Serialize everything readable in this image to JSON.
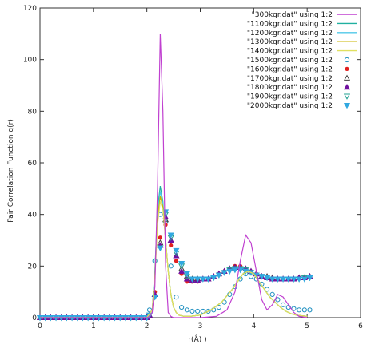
{
  "chart_data": {
    "type": "line",
    "xlabel": "r(Å) )",
    "ylabel": "Pair Correlation Function g(r)",
    "xlim": [
      0,
      6
    ],
    "ylim": [
      0,
      120
    ],
    "xticks": [
      0,
      1,
      2,
      3,
      4,
      5,
      6
    ],
    "yticks": [
      0,
      20,
      40,
      60,
      80,
      100,
      120
    ],
    "grid": false,
    "legend_position": "top-right",
    "series": [
      {
        "name": "\"300kgr.dat\" using 1:2",
        "style": "line",
        "color": "#c040d0",
        "x": [
          0,
          2.0,
          2.05,
          2.1,
          2.15,
          2.2,
          2.25,
          2.3,
          2.35,
          2.4,
          2.45,
          2.5,
          2.7,
          3.0,
          3.3,
          3.5,
          3.65,
          3.75,
          3.85,
          3.95,
          4.05,
          4.15,
          4.25,
          4.35,
          4.45,
          4.55,
          4.65,
          4.75,
          4.85,
          5.0
        ],
        "y": [
          0,
          0,
          0.5,
          2,
          12,
          50,
          110,
          80,
          20,
          2,
          0.5,
          0,
          0,
          0,
          0.5,
          3,
          10,
          22,
          32,
          29,
          18,
          7,
          3,
          5,
          9,
          8,
          5,
          2,
          0.5,
          0
        ]
      },
      {
        "name": "\"1100kgr.dat\" using 1:2",
        "style": "line",
        "color": "#20b0a0",
        "x": [
          0,
          2.0,
          2.1,
          2.15,
          2.2,
          2.25,
          2.3,
          2.35,
          2.4,
          2.45,
          2.5,
          2.55,
          2.6,
          2.7,
          2.8,
          3.0,
          3.2,
          3.4,
          3.6,
          3.8,
          3.9,
          4.0,
          4.1,
          4.2,
          4.3,
          4.4,
          4.5,
          4.6,
          4.7,
          4.8,
          5.0
        ],
        "y": [
          0,
          0,
          3,
          18,
          42,
          51,
          45,
          30,
          18,
          9,
          4,
          2,
          1,
          0.5,
          0.5,
          1,
          3,
          6,
          11,
          17,
          18,
          17,
          14,
          11,
          8,
          6,
          4,
          2.5,
          1.5,
          1,
          0.5
        ]
      },
      {
        "name": "\"1200kgr.dat\" using 1:2",
        "style": "line",
        "color": "#50c8e8",
        "x": [
          0,
          2.0,
          2.1,
          2.15,
          2.2,
          2.25,
          2.3,
          2.35,
          2.4,
          2.45,
          2.5,
          2.55,
          2.6,
          2.7,
          2.8,
          3.0,
          3.2,
          3.4,
          3.6,
          3.8,
          3.9,
          4.0,
          4.1,
          4.2,
          4.3,
          4.4,
          4.5,
          4.6,
          4.7,
          4.8,
          5.0
        ],
        "y": [
          0,
          0,
          3,
          17,
          40,
          49,
          44,
          30,
          18,
          9,
          4,
          2,
          1,
          0.5,
          0.5,
          1,
          3,
          6,
          11,
          17,
          18,
          17,
          14,
          11,
          8,
          6,
          4,
          2.5,
          1.5,
          1,
          0.5
        ]
      },
      {
        "name": "\"1300kgr.dat\" using 1:2",
        "style": "line",
        "color": "#c8b400",
        "x": [
          0,
          2.0,
          2.1,
          2.15,
          2.2,
          2.25,
          2.3,
          2.35,
          2.4,
          2.45,
          2.5,
          2.55,
          2.6,
          2.7,
          2.8,
          3.0,
          3.2,
          3.4,
          3.6,
          3.8,
          3.9,
          4.0,
          4.1,
          4.2,
          4.3,
          4.4,
          4.5,
          4.6,
          4.7,
          4.8,
          5.0
        ],
        "y": [
          0,
          0,
          3,
          16,
          38,
          47,
          43,
          30,
          18,
          9,
          4,
          2,
          1,
          0.5,
          0.5,
          1,
          3,
          6,
          11,
          17,
          18,
          17,
          14,
          11,
          8,
          6,
          4,
          2.5,
          1.5,
          1,
          0.5
        ]
      },
      {
        "name": "\"1400kgr.dat\" using 1:2",
        "style": "line",
        "color": "#e0e060",
        "x": [
          0,
          2.0,
          2.1,
          2.15,
          2.2,
          2.25,
          2.3,
          2.35,
          2.4,
          2.45,
          2.5,
          2.55,
          2.6,
          2.7,
          2.8,
          3.0,
          3.2,
          3.4,
          3.6,
          3.8,
          3.9,
          4.0,
          4.1,
          4.2,
          4.3,
          4.4,
          4.5,
          4.6,
          4.7,
          4.8,
          5.0
        ],
        "y": [
          0,
          0,
          3,
          15,
          36,
          45,
          42,
          30,
          18,
          9,
          4,
          2,
          1,
          0.5,
          0.5,
          1,
          3,
          6,
          11,
          17,
          18,
          17,
          14,
          11,
          8,
          6,
          4,
          2.5,
          1.5,
          1,
          0.5
        ]
      },
      {
        "name": "\"1500kgr.dat\" using 1:2",
        "style": "open-circle",
        "color": "#2090c0",
        "x": [
          0,
          0.1,
          0.2,
          0.3,
          0.4,
          0.5,
          0.6,
          0.7,
          0.8,
          0.9,
          1.0,
          1.1,
          1.2,
          1.3,
          1.4,
          1.5,
          1.6,
          1.7,
          1.8,
          1.9,
          2.0,
          2.05,
          2.15,
          2.25,
          2.35,
          2.45,
          2.55,
          2.65,
          2.75,
          2.85,
          2.95,
          3.05,
          3.15,
          3.25,
          3.35,
          3.45,
          3.55,
          3.65,
          3.75,
          3.85,
          3.95,
          4.05,
          4.15,
          4.25,
          4.35,
          4.45,
          4.55,
          4.65,
          4.75,
          4.85,
          4.95,
          5.05
        ],
        "y": [
          0,
          0,
          0,
          0,
          0,
          0,
          0,
          0,
          0,
          0,
          0,
          0,
          0,
          0,
          0,
          0,
          0,
          0,
          0,
          0,
          0,
          3,
          22,
          40,
          37,
          20,
          8,
          4,
          3,
          2.5,
          2.5,
          2.5,
          2.5,
          3,
          4,
          6,
          9,
          12,
          15,
          17,
          16,
          15,
          13,
          11,
          9,
          7,
          5,
          4,
          3.5,
          3,
          3,
          3
        ]
      },
      {
        "name": "\"1600kgr.dat\" using 1:2",
        "style": "filled-circle",
        "color": "#e02020",
        "x": [
          0,
          0.1,
          0.2,
          0.3,
          0.4,
          0.5,
          0.6,
          0.7,
          0.8,
          0.9,
          1.0,
          1.1,
          1.2,
          1.3,
          1.4,
          1.5,
          1.6,
          1.7,
          1.8,
          1.9,
          2.0,
          2.05,
          2.15,
          2.25,
          2.35,
          2.45,
          2.55,
          2.65,
          2.75,
          2.85,
          2.95,
          3.05,
          3.15,
          3.25,
          3.35,
          3.45,
          3.55,
          3.65,
          3.75,
          3.85,
          3.95,
          4.05,
          4.15,
          4.25,
          4.35,
          4.45,
          4.55,
          4.65,
          4.75,
          4.85,
          4.95,
          5.05
        ],
        "y": [
          0,
          0,
          0,
          0,
          0,
          0,
          0,
          0,
          0,
          0,
          0,
          0,
          0,
          0,
          0,
          0,
          0,
          0,
          0,
          0,
          0,
          1,
          10,
          31,
          36,
          28,
          22,
          17,
          14,
          14,
          14,
          15,
          15,
          16,
          17,
          18,
          19,
          20,
          20,
          19,
          18,
          17,
          16,
          16,
          15,
          15,
          15,
          15,
          15,
          15.5,
          15.5,
          16
        ]
      },
      {
        "name": "\"1700kgr.dat\" using 1:2",
        "style": "open-triangle",
        "color": "#404040",
        "x": [
          0,
          0.1,
          0.2,
          0.3,
          0.4,
          0.5,
          0.6,
          0.7,
          0.8,
          0.9,
          1.0,
          1.1,
          1.2,
          1.3,
          1.4,
          1.5,
          1.6,
          1.7,
          1.8,
          1.9,
          2.0,
          2.05,
          2.15,
          2.25,
          2.35,
          2.45,
          2.55,
          2.65,
          2.75,
          2.85,
          2.95,
          3.05,
          3.15,
          3.25,
          3.35,
          3.45,
          3.55,
          3.65,
          3.75,
          3.85,
          3.95,
          4.05,
          4.15,
          4.25,
          4.35,
          4.45,
          4.55,
          4.65,
          4.75,
          4.85,
          4.95,
          5.05
        ],
        "y": [
          0,
          0,
          0,
          0,
          0,
          0,
          0,
          0,
          0,
          0,
          0,
          0,
          0,
          0,
          0,
          0,
          0,
          0,
          0,
          0,
          0,
          1,
          9,
          29,
          38,
          30,
          24,
          19,
          16,
          15,
          15,
          15,
          15,
          16,
          17,
          18,
          19,
          19.5,
          19.5,
          19,
          18,
          17,
          16,
          16,
          15.5,
          15,
          15,
          15,
          15,
          15.5,
          15.5,
          16
        ]
      },
      {
        "name": "\"1800kgr.dat\" using 1:2",
        "style": "filled-triangle",
        "color": "#7010a0",
        "x": [
          0,
          0.1,
          0.2,
          0.3,
          0.4,
          0.5,
          0.6,
          0.7,
          0.8,
          0.9,
          1.0,
          1.1,
          1.2,
          1.3,
          1.4,
          1.5,
          1.6,
          1.7,
          1.8,
          1.9,
          2.0,
          2.05,
          2.15,
          2.25,
          2.35,
          2.45,
          2.55,
          2.65,
          2.75,
          2.85,
          2.95,
          3.05,
          3.15,
          3.25,
          3.35,
          3.45,
          3.55,
          3.65,
          3.75,
          3.85,
          3.95,
          4.05,
          4.15,
          4.25,
          4.35,
          4.45,
          4.55,
          4.65,
          4.75,
          4.85,
          4.95,
          5.05
        ],
        "y": [
          0,
          0,
          0,
          0,
          0,
          0,
          0,
          0,
          0,
          0,
          0,
          0,
          0,
          0,
          0,
          0,
          0,
          0,
          0,
          0,
          0,
          1,
          9,
          28,
          39,
          30,
          24,
          18,
          15,
          14.5,
          14.5,
          15,
          15,
          16,
          17,
          18,
          19,
          19.5,
          19.5,
          19,
          18,
          17,
          16,
          15.5,
          15,
          15,
          15,
          15,
          15,
          15.5,
          15.5,
          16
        ]
      },
      {
        "name": "\"1900kgr.dat\" using 1:2",
        "style": "open-triangle-down",
        "color": "#20a090",
        "x": [
          0,
          0.1,
          0.2,
          0.3,
          0.4,
          0.5,
          0.6,
          0.7,
          0.8,
          0.9,
          1.0,
          1.1,
          1.2,
          1.3,
          1.4,
          1.5,
          1.6,
          1.7,
          1.8,
          1.9,
          2.0,
          2.05,
          2.15,
          2.25,
          2.35,
          2.45,
          2.55,
          2.65,
          2.75,
          2.85,
          2.95,
          3.05,
          3.15,
          3.25,
          3.35,
          3.45,
          3.55,
          3.65,
          3.75,
          3.85,
          3.95,
          4.05,
          4.15,
          4.25,
          4.35,
          4.45,
          4.55,
          4.65,
          4.75,
          4.85,
          4.95,
          5.05
        ],
        "y": [
          0,
          0,
          0,
          0,
          0,
          0,
          0,
          0,
          0,
          0,
          0,
          0,
          0,
          0,
          0,
          0,
          0,
          0,
          0,
          0,
          0,
          1,
          8,
          27,
          40,
          31,
          25,
          20,
          16,
          15,
          15,
          15,
          15,
          15.5,
          16.5,
          17.5,
          18.5,
          19,
          19,
          18.5,
          17.5,
          16.5,
          16,
          15.5,
          15,
          15,
          15,
          15,
          15,
          15,
          15.5,
          15.5
        ]
      },
      {
        "name": "\"2000kgr.dat\" using 1:2",
        "style": "filled-triangle-down",
        "color": "#30a8e0",
        "x": [
          0,
          0.1,
          0.2,
          0.3,
          0.4,
          0.5,
          0.6,
          0.7,
          0.8,
          0.9,
          1.0,
          1.1,
          1.2,
          1.3,
          1.4,
          1.5,
          1.6,
          1.7,
          1.8,
          1.9,
          2.0,
          2.05,
          2.15,
          2.25,
          2.35,
          2.45,
          2.55,
          2.65,
          2.75,
          2.85,
          2.95,
          3.05,
          3.15,
          3.25,
          3.35,
          3.45,
          3.55,
          3.65,
          3.75,
          3.85,
          3.95,
          4.05,
          4.15,
          4.25,
          4.35,
          4.45,
          4.55,
          4.65,
          4.75,
          4.85,
          4.95,
          5.05
        ],
        "y": [
          0,
          0,
          0,
          0,
          0,
          0,
          0,
          0,
          0,
          0,
          0,
          0,
          0,
          0,
          0,
          0,
          0,
          0,
          0,
          0,
          0,
          1,
          8,
          27,
          41,
          32,
          26,
          21,
          17,
          15,
          15,
          15,
          15,
          15.5,
          16.5,
          17.5,
          18,
          18.5,
          18.5,
          18,
          17.5,
          16.5,
          16,
          15.5,
          15,
          15,
          15,
          15,
          15,
          15,
          15,
          15.5
        ]
      }
    ]
  }
}
